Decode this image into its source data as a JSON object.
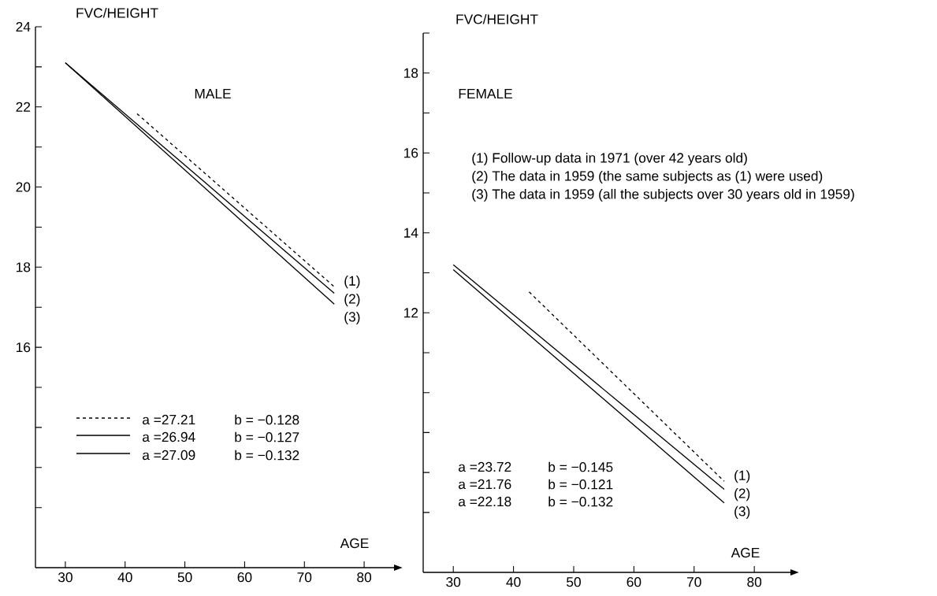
{
  "chart_data": [
    {
      "type": "line",
      "title": "MALE",
      "ylabel": "FVC/HEIGHT",
      "xlabel": "AGE",
      "xlim": [
        25,
        85
      ],
      "xticks": [
        30,
        40,
        50,
        60,
        70,
        80
      ],
      "ylim": [
        10.5,
        24
      ],
      "yticks": [
        {
          "value": 12,
          "label": null
        },
        {
          "value": 13,
          "label": null
        },
        {
          "value": 14,
          "label": null
        },
        {
          "value": 15,
          "label": null
        },
        16,
        {
          "value": 17,
          "label": null
        },
        18,
        {
          "value": 19,
          "label": null
        },
        20,
        {
          "value": 21,
          "label": null
        },
        22,
        {
          "value": 23,
          "label": null
        },
        24
      ],
      "series": [
        {
          "name": "(1)",
          "color": "#000000",
          "line_style": "dashed",
          "x": [
            42,
            75
          ],
          "values": [
            21.83,
            17.51
          ]
        },
        {
          "name": "(2)",
          "color": "#000000",
          "line_style": "solid",
          "x": [
            30,
            75
          ],
          "values": [
            23.1,
            17.35
          ]
        },
        {
          "name": "(3)",
          "color": "#000000",
          "line_style": "solid",
          "x": [
            30,
            75
          ],
          "values": [
            23.1,
            17.08
          ]
        }
      ],
      "annotations": [
        "a =27.21",
        "b = −0.128",
        "a =26.94",
        "b = −0.127",
        "a =27.09",
        "b = −0.132"
      ]
    },
    {
      "type": "line",
      "title": "FEMALE",
      "ylabel": "FVC/HEIGHT",
      "xlabel": "AGE",
      "xlim": [
        25,
        86
      ],
      "xticks": [
        30,
        40,
        50,
        60,
        70,
        80
      ],
      "ylim": [
        5.5,
        19
      ],
      "yticks": [
        {
          "value": 7,
          "label": null
        },
        {
          "value": 8,
          "label": null
        },
        {
          "value": 9,
          "label": null
        },
        {
          "value": 10,
          "label": null
        },
        {
          "value": 11,
          "label": null
        },
        12,
        {
          "value": 13,
          "label": null
        },
        14,
        {
          "value": 15,
          "label": null
        },
        16,
        {
          "value": 17,
          "label": null
        },
        18,
        {
          "value": 19,
          "label": null
        }
      ],
      "series": [
        {
          "name": "(1)",
          "color": "#000000",
          "line_style": "dashed",
          "x": [
            42.6,
            75
          ],
          "values": [
            12.52,
            7.78
          ]
        },
        {
          "name": "(2)",
          "color": "#000000",
          "line_style": "solid",
          "x": [
            30,
            75
          ],
          "values": [
            13.2,
            7.58
          ]
        },
        {
          "name": "(3)",
          "color": "#000000",
          "line_style": "solid",
          "x": [
            30,
            75
          ],
          "values": [
            13.08,
            7.24
          ]
        }
      ],
      "annotations": [
        "(1) Follow-up data in 1971 (over 42 years old)",
        "(2) The data in 1959 (the same subjects as (1) were used)",
        "(3) The data in 1959 (all the subjects over 30 years old in 1959)",
        "a =23.72",
        "b = −0.145",
        "a =21.76",
        "b = −0.121",
        "a =22.18",
        "b = −0.132"
      ]
    }
  ]
}
